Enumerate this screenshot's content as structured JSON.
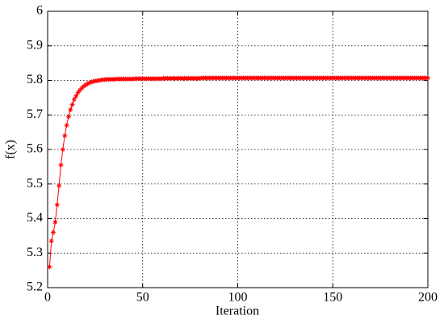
{
  "chart_data": {
    "type": "line",
    "xlabel": "Iteration",
    "ylabel": "f(x)",
    "x": [
      1,
      2,
      3,
      4,
      5,
      6,
      7,
      8,
      9,
      10,
      11,
      12,
      13,
      14,
      15,
      16,
      17,
      18,
      19,
      20,
      21,
      22,
      23,
      24,
      25,
      26,
      27,
      28,
      29,
      30,
      31,
      32,
      33,
      34,
      35,
      36,
      37,
      38,
      39,
      40,
      41,
      42,
      43,
      44,
      45,
      46,
      47,
      48,
      49,
      50,
      51,
      52,
      53,
      54,
      55,
      56,
      57,
      58,
      59,
      60,
      61,
      62,
      63,
      64,
      65,
      66,
      67,
      68,
      69,
      70,
      71,
      72,
      73,
      74,
      75,
      76,
      77,
      78,
      79,
      80,
      81,
      82,
      83,
      84,
      85,
      86,
      87,
      88,
      89,
      90,
      91,
      92,
      93,
      94,
      95,
      96,
      97,
      98,
      99,
      100,
      101,
      102,
      103,
      104,
      105,
      106,
      107,
      108,
      109,
      110,
      111,
      112,
      113,
      114,
      115,
      116,
      117,
      118,
      119,
      120,
      121,
      122,
      123,
      124,
      125,
      126,
      127,
      128,
      129,
      130,
      131,
      132,
      133,
      134,
      135,
      136,
      137,
      138,
      139,
      140,
      141,
      142,
      143,
      144,
      145,
      146,
      147,
      148,
      149,
      150,
      151,
      152,
      153,
      154,
      155,
      156,
      157,
      158,
      159,
      160,
      161,
      162,
      163,
      164,
      165,
      166,
      167,
      168,
      169,
      170,
      171,
      172,
      173,
      174,
      175,
      176,
      177,
      178,
      179,
      180,
      181,
      182,
      183,
      184,
      185,
      186,
      187,
      188,
      189,
      190,
      191,
      192,
      193,
      194,
      195,
      196,
      197,
      198,
      199,
      200
    ],
    "series": [
      {
        "color": "#ff0000",
        "values": [
          5.26,
          5.335,
          5.36,
          5.39,
          5.44,
          5.495,
          5.555,
          5.6,
          5.64,
          5.67,
          5.695,
          5.715,
          5.73,
          5.745,
          5.755,
          5.765,
          5.772,
          5.778,
          5.783,
          5.787,
          5.79,
          5.793,
          5.795,
          5.797,
          5.798,
          5.799,
          5.8,
          5.801,
          5.802,
          5.802,
          5.803,
          5.803,
          5.803,
          5.803,
          5.803,
          5.804,
          5.804,
          5.804,
          5.804,
          5.804,
          5.804,
          5.804,
          5.804,
          5.804,
          5.804,
          5.805,
          5.805,
          5.805,
          5.805,
          5.805,
          5.805,
          5.805,
          5.805,
          5.805,
          5.805,
          5.805,
          5.805,
          5.805,
          5.805,
          5.805,
          5.806,
          5.806,
          5.806,
          5.806,
          5.806,
          5.806,
          5.806,
          5.806,
          5.806,
          5.806,
          5.806,
          5.806,
          5.806,
          5.806,
          5.806,
          5.806,
          5.806,
          5.806,
          5.806,
          5.806,
          5.807,
          5.807,
          5.807,
          5.807,
          5.807,
          5.807,
          5.807,
          5.807,
          5.807,
          5.807,
          5.807,
          5.807,
          5.807,
          5.807,
          5.807,
          5.807,
          5.807,
          5.807,
          5.807,
          5.807,
          5.807,
          5.807,
          5.807,
          5.807,
          5.807,
          5.807,
          5.807,
          5.807,
          5.807,
          5.807,
          5.807,
          5.807,
          5.807,
          5.807,
          5.807,
          5.807,
          5.807,
          5.807,
          5.807,
          5.807,
          5.807,
          5.807,
          5.807,
          5.807,
          5.807,
          5.807,
          5.807,
          5.807,
          5.807,
          5.807,
          5.807,
          5.807,
          5.807,
          5.807,
          5.807,
          5.807,
          5.807,
          5.807,
          5.807,
          5.807,
          5.807,
          5.807,
          5.807,
          5.807,
          5.807,
          5.807,
          5.807,
          5.807,
          5.807,
          5.807,
          5.807,
          5.807,
          5.807,
          5.807,
          5.807,
          5.807,
          5.807,
          5.807,
          5.807,
          5.807,
          5.807,
          5.807,
          5.807,
          5.807,
          5.807,
          5.807,
          5.807,
          5.807,
          5.807,
          5.807,
          5.807,
          5.807,
          5.807,
          5.807,
          5.807,
          5.807,
          5.807,
          5.807,
          5.807,
          5.807,
          5.807,
          5.807,
          5.807,
          5.807,
          5.807,
          5.807,
          5.807,
          5.807,
          5.807,
          5.807,
          5.807,
          5.807,
          5.807,
          5.807,
          5.807,
          5.807,
          5.807,
          5.807,
          5.807,
          5.807
        ]
      }
    ],
    "xlim": [
      0,
      200
    ],
    "xticks": [
      0,
      50,
      100,
      150,
      200
    ],
    "ylim": [
      5.2,
      6
    ],
    "yticks": [
      5.2,
      5.3,
      5.4,
      5.5,
      5.6,
      5.7,
      5.8,
      5.9,
      6
    ],
    "grid": true
  }
}
